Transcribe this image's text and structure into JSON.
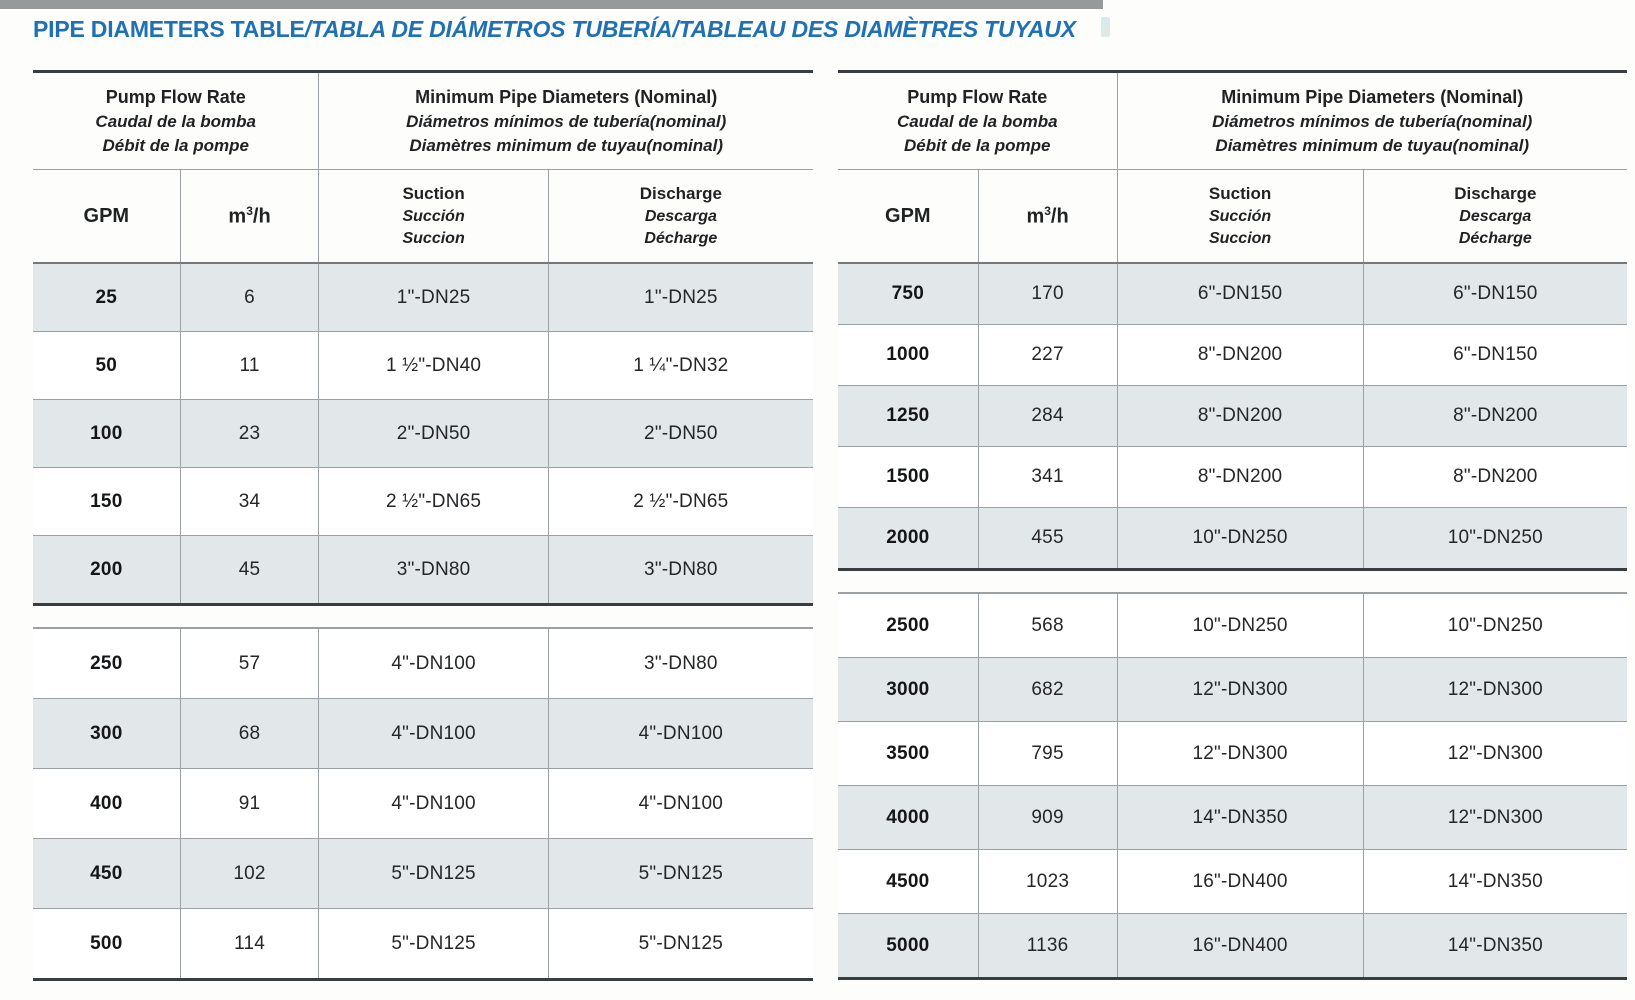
{
  "page_title": {
    "normal": "PIPE DIAMETERS TABLE",
    "italic": "/TABLA DE DIÁMETROS TUBERÍA/TABLEAU DES DIAMÈTRES TUYAUX"
  },
  "colors": {
    "title_blue": "#2070b4",
    "row_shade": "#e2e7ea",
    "line_gray": "#9aa0a4",
    "line_dark": "#3a3d3f"
  },
  "header": {
    "flow_group": {
      "en": "Pump Flow Rate",
      "es": "Caudal de la bomba",
      "fr": "Débit de la pompe"
    },
    "diam_group": {
      "en": "Minimum Pipe Diameters (Nominal)",
      "es": "Diámetros mínimos de tubería(nominal)",
      "fr": "Diamètres minimum de tuyau(nominal)"
    },
    "gpm": "GPM",
    "m3h": {
      "base": "m",
      "sup": "3",
      "rest": "/h"
    },
    "suction": {
      "en": "Suction",
      "es": "Succión",
      "fr": "Succion"
    },
    "discharge": {
      "en": "Discharge",
      "es": "Descarga",
      "fr": "Décharge"
    }
  },
  "tables": [
    {
      "name": "low-flow",
      "sections": [
        {
          "rows": [
            [
              "25",
              "6",
              "1\"-DN25",
              "1\"-DN25"
            ],
            [
              "50",
              "11",
              "1 ½\"-DN40",
              "1 ¼\"-DN32"
            ],
            [
              "100",
              "23",
              "2\"-DN50",
              "2\"-DN50"
            ],
            [
              "150",
              "34",
              "2 ½\"-DN65",
              "2 ½\"-DN65"
            ],
            [
              "200",
              "45",
              "3\"-DN80",
              "3\"-DN80"
            ]
          ]
        },
        {
          "rows": [
            [
              "250",
              "57",
              "4\"-DN100",
              "3\"-DN80"
            ],
            [
              "300",
              "68",
              "4\"-DN100",
              "4\"-DN100"
            ],
            [
              "400",
              "91",
              "4\"-DN100",
              "4\"-DN100"
            ],
            [
              "450",
              "102",
              "5\"-DN125",
              "5\"-DN125"
            ],
            [
              "500",
              "114",
              "5\"-DN125",
              "5\"-DN125"
            ]
          ]
        }
      ]
    },
    {
      "name": "high-flow",
      "sections": [
        {
          "rows": [
            [
              "750",
              "170",
              "6\"-DN150",
              "6\"-DN150"
            ],
            [
              "1000",
              "227",
              "8\"-DN200",
              "6\"-DN150"
            ],
            [
              "1250",
              "284",
              "8\"-DN200",
              "8\"-DN200"
            ],
            [
              "1500",
              "341",
              "8\"-DN200",
              "8\"-DN200"
            ],
            [
              "2000",
              "455",
              "10\"-DN250",
              "10\"-DN250"
            ]
          ]
        },
        {
          "rows": [
            [
              "2500",
              "568",
              "10\"-DN250",
              "10\"-DN250"
            ],
            [
              "3000",
              "682",
              "12\"-DN300",
              "12\"-DN300"
            ],
            [
              "3500",
              "795",
              "12\"-DN300",
              "12\"-DN300"
            ],
            [
              "4000",
              "909",
              "14\"-DN350",
              "12\"-DN300"
            ],
            [
              "4500",
              "1023",
              "16\"-DN400",
              "14\"-DN350"
            ],
            [
              "5000",
              "1136",
              "16\"-DN400",
              "14\"-DN350"
            ]
          ]
        }
      ]
    }
  ]
}
